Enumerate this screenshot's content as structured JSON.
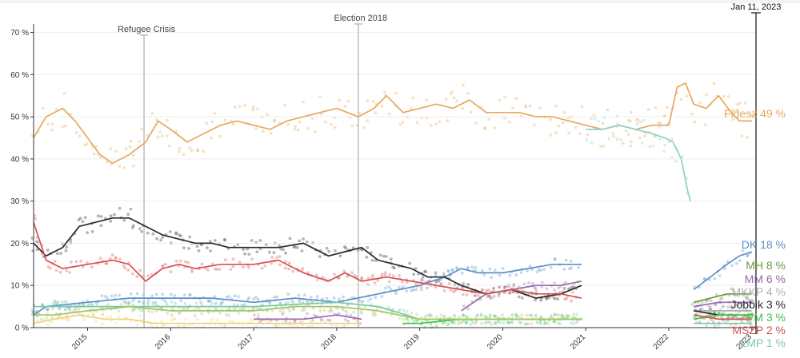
{
  "chart_data": {
    "type": "line",
    "title": "",
    "xlabel": "",
    "ylabel": "",
    "x_ticks": [
      "2015",
      "2016",
      "2017",
      "2018",
      "2019",
      "2020",
      "2021",
      "2022",
      "2023"
    ],
    "y_ticks": [
      "0 %",
      "10 %",
      "20 %",
      "30 %",
      "40 %",
      "50 %",
      "60 %",
      "70 %"
    ],
    "xlim": [
      2014.35,
      2023.05
    ],
    "ylim": [
      0,
      72
    ],
    "date_marker": "Jan 11, 2023",
    "events": [
      {
        "label": "Refugee Crisis",
        "x": 2015.68
      },
      {
        "label": "Election 2018",
        "x": 2018.26
      }
    ],
    "series": [
      {
        "name": "Fidesz",
        "color": "#e8a85c",
        "value_label": "49 %",
        "label_text": "Fidesz",
        "x": [
          2014.35,
          2014.5,
          2014.7,
          2014.85,
          2015.0,
          2015.15,
          2015.3,
          2015.5,
          2015.7,
          2015.85,
          2016.0,
          2016.2,
          2016.4,
          2016.6,
          2016.8,
          2017.0,
          2017.2,
          2017.4,
          2017.6,
          2017.8,
          2018.0,
          2018.26,
          2018.45,
          2018.6,
          2018.8,
          2019.0,
          2019.2,
          2019.4,
          2019.6,
          2019.8,
          2020.0,
          2020.2,
          2020.4,
          2020.6,
          2020.8,
          2021.0,
          2021.2,
          2021.4,
          2021.6,
          2021.8,
          2022.0,
          2022.1,
          2022.2,
          2022.3,
          2022.45,
          2022.6,
          2022.75,
          2022.85,
          2023.0
        ],
        "y": [
          45,
          50,
          52,
          49,
          45,
          41,
          39,
          41,
          44,
          49,
          47,
          44,
          46,
          48,
          49,
          48,
          47,
          49,
          50,
          51,
          52,
          50,
          52,
          55,
          51,
          52,
          53,
          52,
          54,
          51,
          51,
          51,
          50,
          50,
          49,
          48,
          47,
          48,
          47,
          48,
          48,
          57,
          58,
          53,
          52,
          55,
          51,
          49,
          49
        ]
      },
      {
        "name": "",
        "color": "#8fd0c8",
        "value_label": "",
        "label_text": "",
        "x": [
          2021.0,
          2021.2,
          2021.4,
          2021.6,
          2021.8,
          2021.95,
          2022.05,
          2022.15,
          2022.22,
          2022.26
        ],
        "y": [
          47,
          47,
          48,
          47,
          46,
          45,
          44,
          40,
          33,
          30
        ]
      },
      {
        "name": "DK",
        "color": "#5a8fc8",
        "value_label": "18 %",
        "label_text": "DK",
        "x": [
          2014.35,
          2014.5,
          2015.0,
          2015.5,
          2016.0,
          2016.5,
          2017.0,
          2017.5,
          2018.0,
          2018.5,
          2019.0,
          2019.3,
          2019.5,
          2019.7,
          2020.0,
          2020.3,
          2020.6,
          2020.95,
          2022.3,
          2022.5,
          2022.7,
          2022.85,
          2023.0
        ],
        "y": [
          3,
          5,
          6,
          7,
          7,
          7,
          6,
          7,
          6,
          8,
          10,
          12,
          14,
          13,
          13,
          14,
          15,
          15,
          9,
          12,
          15,
          17,
          18
        ]
      },
      {
        "name": "MH",
        "color": "#6e9a40",
        "value_label": "8 %",
        "label_text": "MH",
        "x": [
          2022.3,
          2022.5,
          2022.7,
          2022.85,
          2023.0
        ],
        "y": [
          6,
          7,
          8,
          8,
          8
        ]
      },
      {
        "name": "MM",
        "color": "#9a6aa8",
        "value_label": "6 %",
        "label_text": "MM",
        "x": [
          2017.0,
          2017.3,
          2017.6,
          2018.0,
          2018.3,
          2019.5,
          2019.8,
          2020.1,
          2020.4,
          2020.7,
          2020.95,
          2022.3,
          2022.6,
          2023.0
        ],
        "y": [
          2,
          2,
          2,
          3,
          2,
          4,
          8,
          9,
          10,
          10,
          11,
          5,
          6,
          6
        ]
      },
      {
        "name": "MKKP",
        "color": "#b0b0b0",
        "value_label": "4 %",
        "label_text": "MKKP",
        "x": [
          2022.3,
          2022.6,
          2023.0
        ],
        "y": [
          4,
          4,
          4
        ]
      },
      {
        "name": "Jobbik",
        "color": "#2a2a2a",
        "value_label": "3 %",
        "label_text": "Jobbik",
        "x": [
          2014.35,
          2014.5,
          2014.7,
          2014.9,
          2015.1,
          2015.3,
          2015.5,
          2015.7,
          2015.9,
          2016.1,
          2016.3,
          2016.5,
          2016.7,
          2017.0,
          2017.3,
          2017.6,
          2017.9,
          2018.1,
          2018.3,
          2018.5,
          2018.7,
          2018.9,
          2019.1,
          2019.3,
          2019.5,
          2019.8,
          2020.1,
          2020.4,
          2020.7,
          2020.95,
          2022.3,
          2022.6,
          2023.0
        ],
        "y": [
          20,
          17,
          19,
          24,
          25,
          26,
          26,
          24,
          22,
          21,
          20,
          20,
          19,
          19,
          19,
          20,
          17,
          18,
          19,
          16,
          15,
          14,
          12,
          12,
          10,
          8,
          9,
          7,
          8,
          10,
          4,
          3,
          3
        ]
      },
      {
        "name": "PM",
        "color": "#3ec64a",
        "value_label": "3 %",
        "label_text": "PM",
        "x": [
          2018.8,
          2019.0,
          2019.5,
          2020.0,
          2020.5,
          2020.95,
          2022.3,
          2022.6,
          2023.0
        ],
        "y": [
          1,
          1,
          2,
          2,
          2,
          2,
          2,
          3,
          3
        ]
      },
      {
        "name": "MSZP",
        "color": "#d65050",
        "value_label": "2 %",
        "label_text": "MSZP",
        "x": [
          2014.35,
          2014.5,
          2014.7,
          2015.0,
          2015.3,
          2015.5,
          2015.7,
          2015.9,
          2016.1,
          2016.3,
          2016.6,
          2017.0,
          2017.3,
          2017.6,
          2017.9,
          2018.1,
          2018.3,
          2018.6,
          2018.9,
          2019.2,
          2019.5,
          2019.8,
          2020.1,
          2020.4,
          2020.7,
          2020.95,
          2022.3,
          2022.6,
          2023.0
        ],
        "y": [
          25,
          16,
          14,
          15,
          16,
          15,
          11,
          14,
          15,
          14,
          15,
          15,
          16,
          13,
          11,
          13,
          11,
          12,
          11,
          10,
          9,
          8,
          9,
          8,
          8,
          7,
          3,
          2,
          2
        ]
      },
      {
        "name": "LMP",
        "color": "#7bc9a8",
        "value_label": "1 %",
        "label_text": "LMP",
        "x": [
          2014.35,
          2015.0,
          2016.0,
          2017.0,
          2018.0,
          2018.5,
          2019.0,
          2019.5,
          2020.0,
          2020.5,
          2020.95,
          2022.3,
          2022.6,
          2023.0
        ],
        "y": [
          5,
          5,
          5,
          5,
          6,
          5,
          2,
          2,
          2,
          2,
          2,
          1,
          1,
          1
        ]
      },
      {
        "name": "",
        "color": "#a6c460",
        "value_label": "",
        "label_text": "",
        "x": [
          2014.35,
          2014.6,
          2015.0,
          2015.5,
          2016.0,
          2016.5,
          2017.0,
          2017.5,
          2018.0,
          2018.5,
          2019.0,
          2019.5,
          2020.0,
          2020.5,
          2020.95
        ],
        "y": [
          3,
          3,
          4,
          5,
          4,
          4,
          4,
          5,
          5,
          4,
          2,
          2,
          2,
          2,
          2
        ]
      },
      {
        "name": "",
        "color": "#f0d27a",
        "value_label": "",
        "label_text": "",
        "x": [
          2014.35,
          2014.6,
          2014.9,
          2015.2,
          2015.5,
          2015.8,
          2016.0,
          2016.3,
          2016.6,
          2017.0,
          2017.5,
          2018.0,
          2018.3
        ],
        "y": [
          1,
          2,
          3,
          2,
          2,
          1,
          1,
          1,
          1,
          1,
          1,
          1,
          1
        ]
      }
    ]
  }
}
